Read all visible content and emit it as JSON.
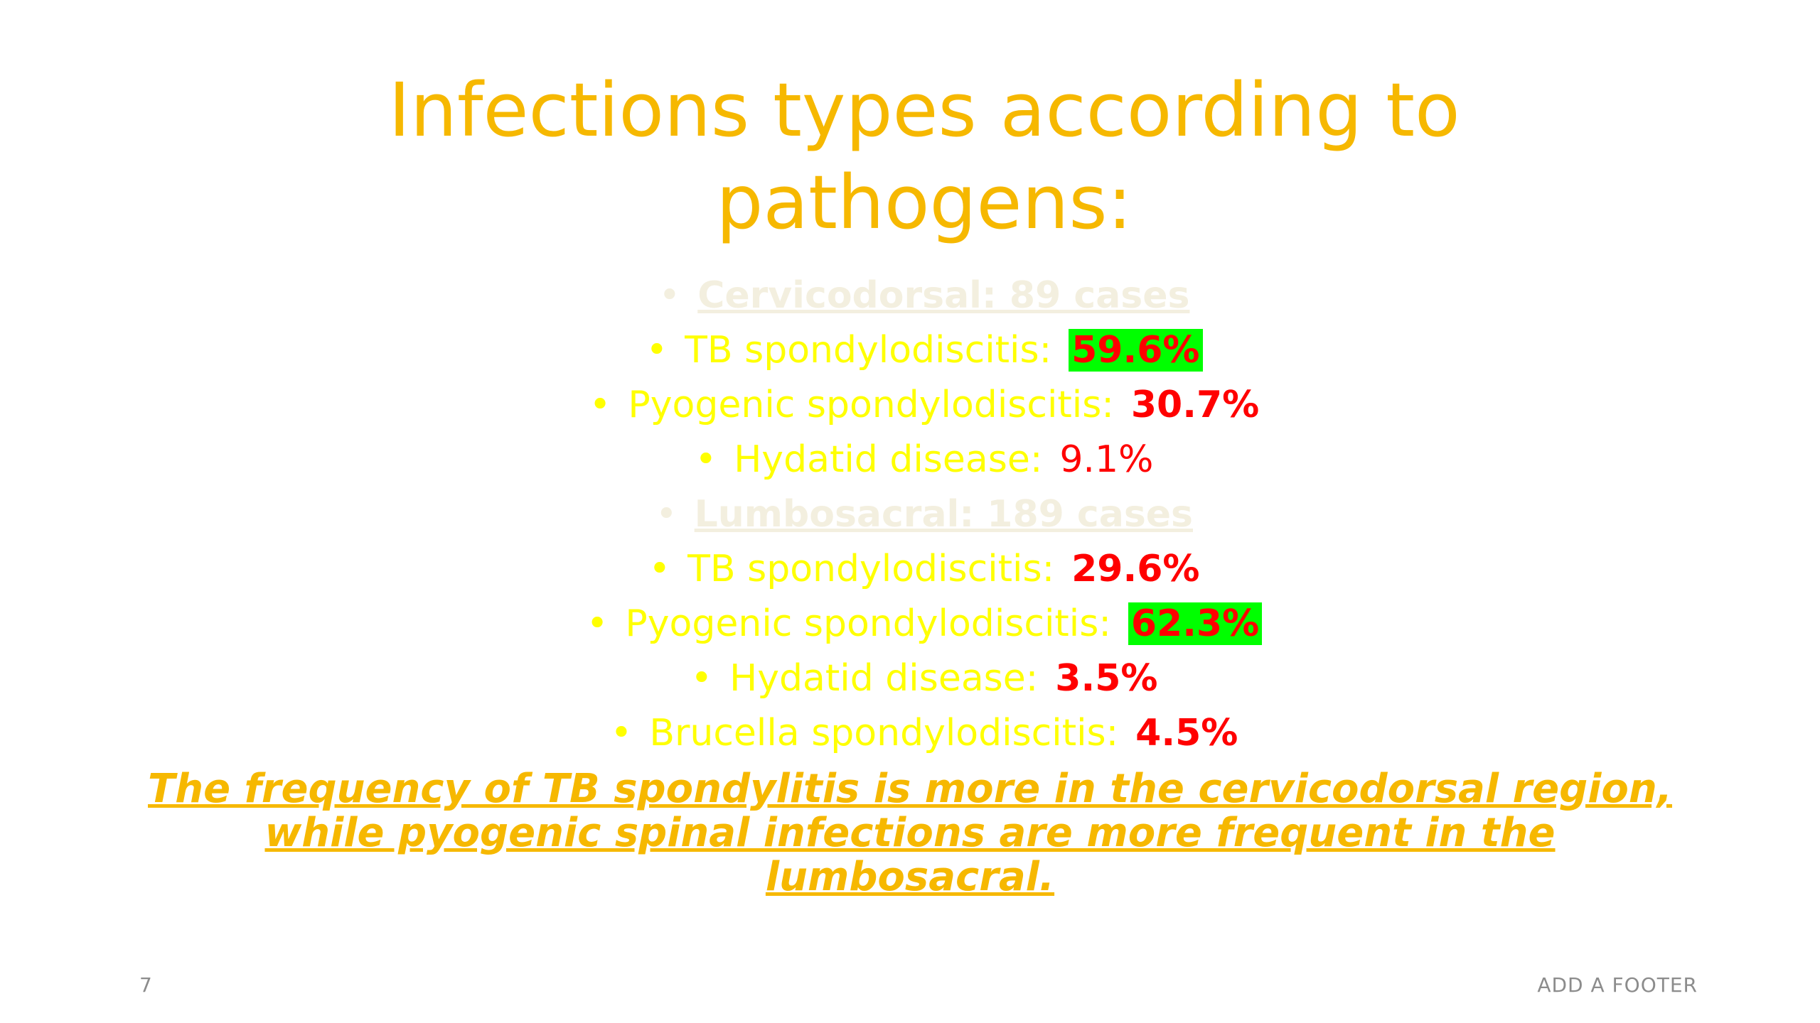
{
  "slide": {
    "title": "Infections types according to pathogens:",
    "lines": [
      {
        "kind": "section",
        "bullet": "•",
        "label": "Cervicodorsal: 89 cases"
      },
      {
        "kind": "item",
        "bullet": "•",
        "label": "TB spondylodiscitis:",
        "value": "59.6%",
        "highlight": true,
        "bold": true
      },
      {
        "kind": "item",
        "bullet": "•",
        "label": "Pyogenic spondylodiscitis:",
        "value": "30.7%",
        "highlight": false,
        "bold": true
      },
      {
        "kind": "item",
        "bullet": "•",
        "label": "Hydatid disease:",
        "value": "9.1%",
        "highlight": false,
        "bold": false
      },
      {
        "kind": "section",
        "bullet": "•",
        "label": "Lumbosacral: 189 cases"
      },
      {
        "kind": "item",
        "bullet": "•",
        "label": "TB spondylodiscitis:",
        "value": "29.6%",
        "highlight": false,
        "bold": true
      },
      {
        "kind": "item",
        "bullet": "•",
        "label": "Pyogenic spondylodiscitis:",
        "value": "62.3%",
        "highlight": true,
        "bold": true
      },
      {
        "kind": "item",
        "bullet": "•",
        "label": "Hydatid disease:",
        "value": "3.5%",
        "highlight": false,
        "bold": true
      },
      {
        "kind": "item",
        "bullet": "•",
        "label": "Brucella spondylodiscitis:",
        "value": "4.5%",
        "highlight": false,
        "bold": true
      }
    ],
    "conclusion": "The frequency of TB spondylitis is more in the cervicodorsal region, while pyogenic spinal infections are more frequent in the lumbosacral.",
    "slide_number": "7",
    "footer": "ADD A FOOTER"
  },
  "colors": {
    "title": "#f6b800",
    "item_text": "#ffff00",
    "section_text": "#f3efdf",
    "value_text": "#ff0000",
    "value_highlight": "#00ff00",
    "footer_text": "#8c8c8c"
  }
}
